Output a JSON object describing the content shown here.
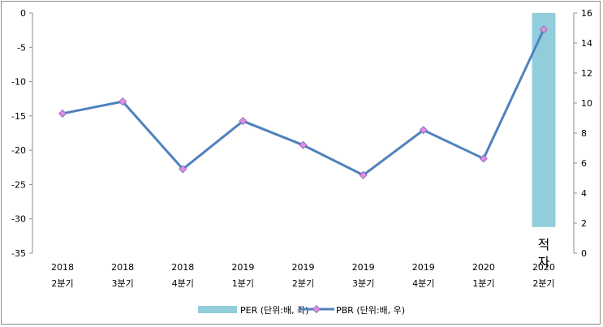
{
  "chart_data": {
    "type": "bar+line",
    "categories": [
      {
        "year": "2018",
        "quarter": "2분기"
      },
      {
        "year": "2018",
        "quarter": "3분기"
      },
      {
        "year": "2018",
        "quarter": "4분기"
      },
      {
        "year": "2019",
        "quarter": "1분기"
      },
      {
        "year": "2019",
        "quarter": "2분기"
      },
      {
        "year": "2019",
        "quarter": "3분기"
      },
      {
        "year": "2019",
        "quarter": "4분기"
      },
      {
        "year": "2020",
        "quarter": "1분기"
      },
      {
        "year": "2020",
        "quarter": "2분기"
      }
    ],
    "series": [
      {
        "name": "PER (단위:배, 좌)",
        "type": "bar",
        "axis": "left",
        "color": "#92cddc",
        "values": [
          null,
          null,
          null,
          null,
          null,
          null,
          null,
          null,
          -31.2
        ],
        "annotation": {
          "category_index": 8,
          "text": "적자"
        }
      },
      {
        "name": "PBR (단위:배, 우)",
        "type": "line",
        "axis": "right",
        "color": "#4f81bd",
        "marker_color": "#e38be3",
        "values": [
          9.3,
          10.1,
          5.6,
          8.8,
          7.2,
          5.2,
          8.2,
          6.3,
          14.9
        ]
      }
    ],
    "left_axis": {
      "min": -35,
      "max": 0,
      "step": 5,
      "ticks": [
        "0",
        "-5",
        "-10",
        "-15",
        "-20",
        "-25",
        "-30",
        "-35"
      ]
    },
    "right_axis": {
      "min": 0,
      "max": 16,
      "step": 2,
      "ticks": [
        "16",
        "14",
        "12",
        "10",
        "8",
        "6",
        "4",
        "2",
        "0"
      ]
    },
    "grid": false,
    "legend_position": "bottom"
  }
}
